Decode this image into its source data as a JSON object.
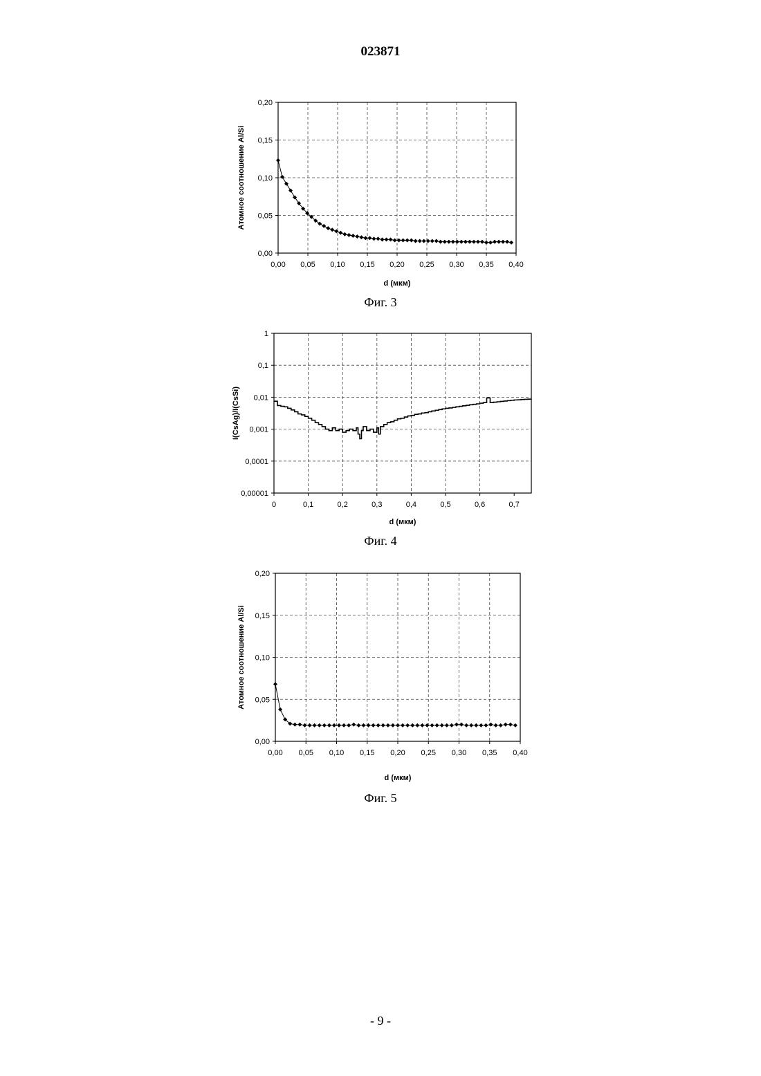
{
  "document": {
    "number": "023871",
    "page": "- 9 -"
  },
  "figures": [
    {
      "caption": "Фиг. 3"
    },
    {
      "caption": "Фиг. 4"
    },
    {
      "caption": "Фиг. 5"
    }
  ],
  "chart_data": [
    {
      "type": "scatter",
      "xlabel": "d (мкм)",
      "ylabel": "Атомное соотношение Al/Si",
      "xlim": [
        0,
        0.4
      ],
      "ylim": [
        0,
        0.2
      ],
      "y_scale": "linear",
      "xticks": [
        "0,00",
        "0,05",
        "0,10",
        "0,15",
        "0,20",
        "0,25",
        "0,30",
        "0,35",
        "0,40"
      ],
      "yticks": [
        "0,00",
        "0,05",
        "0,10",
        "0,15",
        "0,20"
      ],
      "grid": true,
      "marker": "diamond",
      "x": [
        0.0,
        0.007,
        0.014,
        0.021,
        0.028,
        0.035,
        0.042,
        0.049,
        0.056,
        0.063,
        0.07,
        0.077,
        0.084,
        0.091,
        0.098,
        0.105,
        0.112,
        0.119,
        0.126,
        0.133,
        0.14,
        0.147,
        0.154,
        0.161,
        0.168,
        0.175,
        0.182,
        0.189,
        0.196,
        0.203,
        0.21,
        0.217,
        0.224,
        0.231,
        0.238,
        0.245,
        0.252,
        0.259,
        0.266,
        0.273,
        0.28,
        0.287,
        0.294,
        0.301,
        0.308,
        0.315,
        0.322,
        0.329,
        0.336,
        0.343,
        0.35,
        0.357,
        0.364,
        0.371,
        0.378,
        0.385,
        0.392
      ],
      "y": [
        0.123,
        0.101,
        0.092,
        0.083,
        0.074,
        0.066,
        0.059,
        0.053,
        0.048,
        0.043,
        0.039,
        0.036,
        0.033,
        0.031,
        0.029,
        0.027,
        0.025,
        0.024,
        0.023,
        0.022,
        0.021,
        0.02,
        0.02,
        0.019,
        0.019,
        0.018,
        0.018,
        0.018,
        0.017,
        0.017,
        0.017,
        0.017,
        0.017,
        0.016,
        0.016,
        0.016,
        0.016,
        0.016,
        0.016,
        0.015,
        0.015,
        0.015,
        0.015,
        0.015,
        0.015,
        0.015,
        0.015,
        0.015,
        0.015,
        0.015,
        0.014,
        0.014,
        0.015,
        0.015,
        0.015,
        0.015,
        0.014
      ]
    },
    {
      "type": "line",
      "xlabel": "d (мкм)",
      "ylabel": "I(CsAg)/I(CsSi)",
      "xlim": [
        0,
        0.75
      ],
      "ylim": [
        1e-05,
        1
      ],
      "y_scale": "log",
      "xticks": [
        "0",
        "0,1",
        "0,2",
        "0,3",
        "0,4",
        "0,5",
        "0,6",
        "0,7"
      ],
      "yticks": [
        "0,00001",
        "0,0001",
        "0,001",
        "0,01",
        "0,1",
        "1"
      ],
      "grid": true,
      "step": true,
      "x": [
        0.0,
        0.01,
        0.02,
        0.03,
        0.04,
        0.05,
        0.06,
        0.07,
        0.08,
        0.09,
        0.1,
        0.11,
        0.12,
        0.13,
        0.14,
        0.15,
        0.16,
        0.17,
        0.18,
        0.19,
        0.2,
        0.21,
        0.22,
        0.23,
        0.24,
        0.245,
        0.25,
        0.255,
        0.26,
        0.27,
        0.28,
        0.29,
        0.3,
        0.305,
        0.31,
        0.32,
        0.33,
        0.34,
        0.35,
        0.36,
        0.37,
        0.38,
        0.39,
        0.4,
        0.41,
        0.42,
        0.43,
        0.44,
        0.45,
        0.46,
        0.47,
        0.48,
        0.49,
        0.5,
        0.51,
        0.52,
        0.53,
        0.54,
        0.55,
        0.56,
        0.57,
        0.58,
        0.59,
        0.6,
        0.61,
        0.62,
        0.63,
        0.64,
        0.65,
        0.66,
        0.67,
        0.68,
        0.69,
        0.7,
        0.71,
        0.72,
        0.73,
        0.74,
        0.75
      ],
      "y": [
        0.0075,
        0.0055,
        0.0052,
        0.005,
        0.0045,
        0.004,
        0.0035,
        0.003,
        0.0028,
        0.0025,
        0.0022,
        0.0019,
        0.0016,
        0.0014,
        0.0012,
        0.001,
        0.0009,
        0.0011,
        0.0009,
        0.001,
        0.0008,
        0.0009,
        0.001,
        0.0009,
        0.0011,
        0.0007,
        0.0005,
        0.0009,
        0.0012,
        0.0009,
        0.001,
        0.0008,
        0.0011,
        0.0007,
        0.0012,
        0.0014,
        0.0016,
        0.0017,
        0.0019,
        0.0021,
        0.0022,
        0.0024,
        0.0026,
        0.0027,
        0.0029,
        0.003,
        0.0032,
        0.0033,
        0.0035,
        0.0037,
        0.0039,
        0.0041,
        0.0043,
        0.0045,
        0.0046,
        0.0048,
        0.005,
        0.0052,
        0.0054,
        0.0056,
        0.0058,
        0.006,
        0.0062,
        0.0065,
        0.0068,
        0.0095,
        0.0068,
        0.007,
        0.0072,
        0.0074,
        0.0076,
        0.0078,
        0.008,
        0.0082,
        0.0083,
        0.0085,
        0.0086,
        0.0087,
        0.0088
      ]
    },
    {
      "type": "scatter",
      "xlabel": "d (мкм)",
      "ylabel": "Атомное соотношение Al/Si",
      "xlim": [
        0,
        0.4
      ],
      "ylim": [
        0,
        0.2
      ],
      "y_scale": "linear",
      "xticks": [
        "0,00",
        "0,05",
        "0,10",
        "0,15",
        "0,20",
        "0,25",
        "0,30",
        "0,35",
        "0,40"
      ],
      "yticks": [
        "0,00",
        "0,05",
        "0,10",
        "0,15",
        "0,20"
      ],
      "grid": true,
      "marker": "diamond",
      "x": [
        0.0,
        0.008,
        0.016,
        0.024,
        0.032,
        0.04,
        0.048,
        0.056,
        0.064,
        0.072,
        0.08,
        0.088,
        0.096,
        0.104,
        0.112,
        0.12,
        0.128,
        0.136,
        0.144,
        0.152,
        0.16,
        0.168,
        0.176,
        0.184,
        0.192,
        0.2,
        0.208,
        0.216,
        0.224,
        0.232,
        0.24,
        0.248,
        0.256,
        0.264,
        0.272,
        0.28,
        0.288,
        0.296,
        0.304,
        0.312,
        0.32,
        0.328,
        0.336,
        0.344,
        0.352,
        0.36,
        0.368,
        0.376,
        0.384,
        0.392
      ],
      "y": [
        0.068,
        0.038,
        0.026,
        0.021,
        0.02,
        0.02,
        0.019,
        0.019,
        0.019,
        0.019,
        0.019,
        0.019,
        0.019,
        0.019,
        0.019,
        0.019,
        0.02,
        0.019,
        0.019,
        0.019,
        0.019,
        0.019,
        0.019,
        0.019,
        0.019,
        0.019,
        0.019,
        0.019,
        0.019,
        0.019,
        0.019,
        0.019,
        0.019,
        0.019,
        0.019,
        0.019,
        0.019,
        0.02,
        0.02,
        0.019,
        0.019,
        0.019,
        0.019,
        0.019,
        0.02,
        0.019,
        0.019,
        0.02,
        0.02,
        0.019
      ]
    }
  ]
}
